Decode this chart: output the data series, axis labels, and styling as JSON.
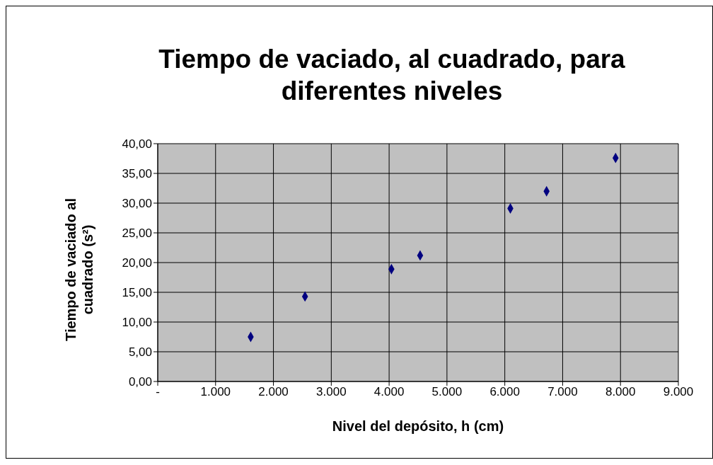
{
  "chart_data": {
    "type": "scatter",
    "title": "Tiempo de vaciado, al cuadrado, para diferentes niveles",
    "xlabel": "Nivel del depósito, h (cm)",
    "ylabel": "Tiempo de vaciado al cuadrado  (s²)",
    "x": [
      1607,
      2546,
      4040,
      4536,
      6096,
      6722,
      7915
    ],
    "series": [
      {
        "color": "#000080",
        "values": [
          7.5,
          14.3,
          18.9,
          21.2,
          29.1,
          32.0,
          37.6
        ]
      }
    ],
    "xlim": [
      0,
      9000
    ],
    "xticks": [
      {
        "value": 0,
        "label": "-"
      },
      {
        "value": 1000,
        "label": "1.000"
      },
      {
        "value": 2000,
        "label": "2.000"
      },
      {
        "value": 3000,
        "label": "3.000"
      },
      {
        "value": 4000,
        "label": "4.000"
      },
      {
        "value": 5000,
        "label": "5.000"
      },
      {
        "value": 6000,
        "label": "6.000"
      },
      {
        "value": 7000,
        "label": "7.000"
      },
      {
        "value": 8000,
        "label": "8.000"
      },
      {
        "value": 9000,
        "label": "9.000"
      }
    ],
    "ylim": [
      0,
      40
    ],
    "yticks": [
      {
        "value": 0,
        "label": "0,00"
      },
      {
        "value": 5,
        "label": "5,00"
      },
      {
        "value": 10,
        "label": "10,00"
      },
      {
        "value": 15,
        "label": "15,00"
      },
      {
        "value": 20,
        "label": "20,00"
      },
      {
        "value": 25,
        "label": "25,00"
      },
      {
        "value": 30,
        "label": "30,00"
      },
      {
        "value": 35,
        "label": "35,00"
      },
      {
        "value": 40,
        "label": "40,00"
      }
    ],
    "grid": true,
    "marker": "diamond",
    "legend": false
  }
}
